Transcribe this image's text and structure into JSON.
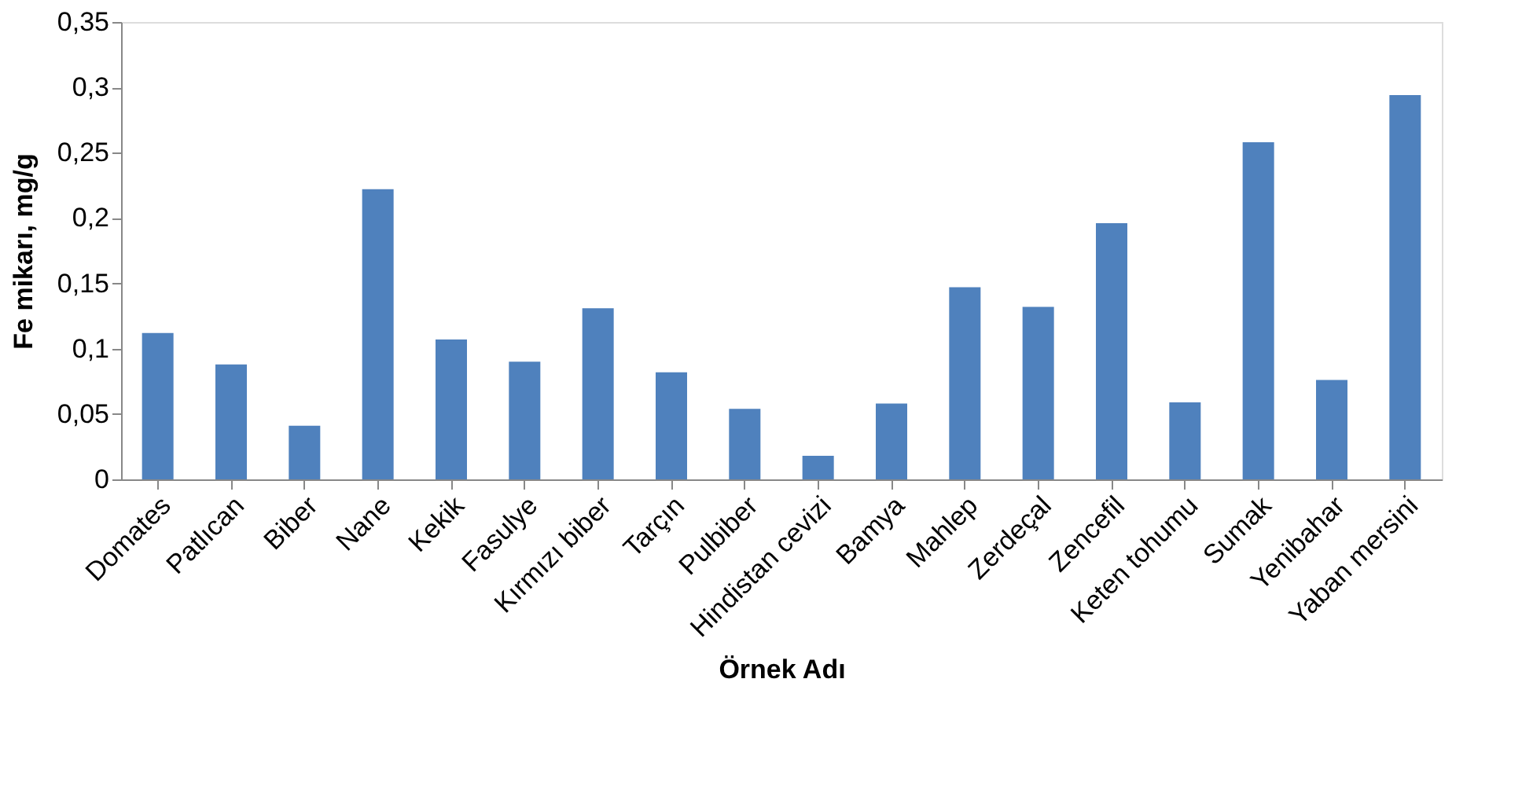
{
  "chart_data": {
    "type": "bar",
    "xlabel": "Örnek Adı",
    "ylabel": "Fe mikarı, mg/g",
    "categories": [
      "Domates",
      "Patlıcan",
      "Biber",
      "Nane",
      "Kekik",
      "Fasulye",
      "Kırmızı biber",
      "Tarçın",
      "Pulbiber",
      "Hindistan cevizi",
      "Bamya",
      "Mahlep",
      "Zerdeçal",
      "Zencefil",
      "Keten tohumu",
      "Sumak",
      "Yenibahar",
      "Yaban mersini"
    ],
    "values": [
      0.112,
      0.088,
      0.041,
      0.222,
      0.107,
      0.09,
      0.131,
      0.082,
      0.054,
      0.018,
      0.058,
      0.147,
      0.132,
      0.196,
      0.059,
      0.258,
      0.076,
      0.294
    ],
    "color": "#4f81bd",
    "ylim": [
      0,
      0.35
    ],
    "yticks": [
      {
        "value": 0,
        "label": "0"
      },
      {
        "value": 0.05,
        "label": "0,05"
      },
      {
        "value": 0.1,
        "label": "0,1"
      },
      {
        "value": 0.15,
        "label": "0,15"
      },
      {
        "value": 0.2,
        "label": "0,2"
      },
      {
        "value": 0.25,
        "label": "0,25"
      },
      {
        "value": 0.3,
        "label": "0,3"
      },
      {
        "value": 0.35,
        "label": "0,35"
      }
    ],
    "grid": false
  }
}
